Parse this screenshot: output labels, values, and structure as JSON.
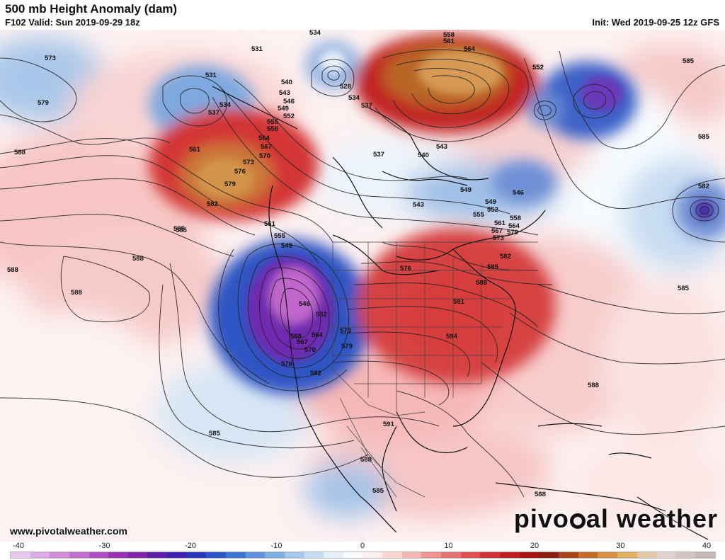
{
  "header": {
    "title": "500 mb Height Anomaly (dam)",
    "subtitle": "F102 Valid: Sun 2019-09-29 18z",
    "init": "Init: Wed 2019-09-25 12z GFS"
  },
  "footer": {
    "website": "www.pivotalweather.com",
    "logo_left": "pivo",
    "logo_right": "al weather"
  },
  "colorbar": {
    "ticks": [
      "-40",
      "-30",
      "-20",
      "-10",
      "0",
      "10",
      "20",
      "30",
      "40"
    ],
    "colors": [
      "#e6c6ef",
      "#dca8e6",
      "#d38bdc",
      "#c46dd0",
      "#b04cc2",
      "#9a31b4",
      "#7f22ac",
      "#5f1fad",
      "#3f22b3",
      "#2a35be",
      "#2a55c9",
      "#3a74d2",
      "#5a92db",
      "#7cade4",
      "#a0c6ec",
      "#c5dcf3",
      "#e3eef8",
      "#f7fbfe",
      "#fdeeee",
      "#fad2d2",
      "#f6b3b3",
      "#f09292",
      "#e87070",
      "#de4f4f",
      "#d13232",
      "#c21c1c",
      "#a81414",
      "#8c1d10",
      "#a84418",
      "#c66b24",
      "#d68f3e",
      "#e0ad63",
      "#e6c6a0",
      "#ddd0cd",
      "#d2c3c3",
      "#c7b6b6"
    ]
  },
  "map_labels": {
    "contours": [
      {
        "id": "c1",
        "text": "573"
      },
      {
        "id": "c2",
        "text": "579"
      },
      {
        "id": "c3",
        "text": "531"
      },
      {
        "id": "c4",
        "text": "531"
      },
      {
        "id": "c5",
        "text": "534"
      },
      {
        "id": "c6",
        "text": "537"
      },
      {
        "id": "c7",
        "text": "540"
      },
      {
        "id": "c8",
        "text": "543"
      },
      {
        "id": "c9",
        "text": "546"
      },
      {
        "id": "c10",
        "text": "549"
      },
      {
        "id": "c11",
        "text": "552"
      },
      {
        "id": "c12",
        "text": "555"
      },
      {
        "id": "c13",
        "text": "558"
      },
      {
        "id": "c14",
        "text": "561"
      },
      {
        "id": "c15",
        "text": "564"
      },
      {
        "id": "c16",
        "text": "567"
      },
      {
        "id": "c17",
        "text": "570"
      },
      {
        "id": "c18",
        "text": "573"
      },
      {
        "id": "c19",
        "text": "576"
      },
      {
        "id": "c20",
        "text": "579"
      },
      {
        "id": "c21",
        "text": "582"
      },
      {
        "id": "c22",
        "text": "585"
      },
      {
        "id": "c23",
        "text": "588"
      },
      {
        "id": "c24",
        "text": "588"
      },
      {
        "id": "c25",
        "text": "588"
      },
      {
        "id": "c26",
        "text": "534"
      },
      {
        "id": "c27",
        "text": "528"
      },
      {
        "id": "c28",
        "text": "558"
      },
      {
        "id": "c29",
        "text": "561"
      },
      {
        "id": "c30",
        "text": "564"
      },
      {
        "id": "c31",
        "text": "552"
      },
      {
        "id": "c32",
        "text": "546"
      },
      {
        "id": "c33",
        "text": "549"
      },
      {
        "id": "c34",
        "text": "543"
      },
      {
        "id": "c35",
        "text": "552"
      },
      {
        "id": "c36",
        "text": "555"
      },
      {
        "id": "c37",
        "text": "558"
      },
      {
        "id": "c38",
        "text": "561"
      },
      {
        "id": "c39",
        "text": "564"
      },
      {
        "id": "c40",
        "text": "567"
      },
      {
        "id": "c41",
        "text": "570"
      },
      {
        "id": "c42",
        "text": "573"
      },
      {
        "id": "c43",
        "text": "576"
      },
      {
        "id": "c44",
        "text": "582"
      },
      {
        "id": "c45",
        "text": "585"
      },
      {
        "id": "c46",
        "text": "588"
      },
      {
        "id": "c47",
        "text": "591"
      },
      {
        "id": "c48",
        "text": "594"
      },
      {
        "id": "c49",
        "text": "591"
      },
      {
        "id": "c50",
        "text": "588"
      },
      {
        "id": "c51",
        "text": "585"
      },
      {
        "id": "c52",
        "text": "552"
      },
      {
        "id": "c53",
        "text": "585"
      },
      {
        "id": "c54",
        "text": "585"
      },
      {
        "id": "c55",
        "text": "582"
      },
      {
        "id": "c56",
        "text": "585"
      },
      {
        "id": "c57",
        "text": "588"
      },
      {
        "id": "c58",
        "text": "588"
      },
      {
        "id": "c59",
        "text": "555"
      },
      {
        "id": "c60",
        "text": "549"
      },
      {
        "id": "c61",
        "text": "546"
      },
      {
        "id": "c62",
        "text": "552"
      },
      {
        "id": "c63",
        "text": "558"
      },
      {
        "id": "c64",
        "text": "564"
      },
      {
        "id": "c65",
        "text": "567"
      },
      {
        "id": "c66",
        "text": "570"
      },
      {
        "id": "c67",
        "text": "573"
      },
      {
        "id": "c68",
        "text": "579"
      },
      {
        "id": "c69",
        "text": "576"
      },
      {
        "id": "c70",
        "text": "582"
      },
      {
        "id": "c71",
        "text": "585"
      },
      {
        "id": "c72",
        "text": "588"
      },
      {
        "id": "c73",
        "text": "585"
      },
      {
        "id": "c74",
        "text": "561"
      },
      {
        "id": "c75",
        "text": "540"
      },
      {
        "id": "c76",
        "text": "543"
      },
      {
        "id": "c77",
        "text": "537"
      },
      {
        "id": "c78",
        "text": "534"
      },
      {
        "id": "c79",
        "text": "537"
      },
      {
        "id": "c80",
        "text": "549"
      }
    ]
  }
}
